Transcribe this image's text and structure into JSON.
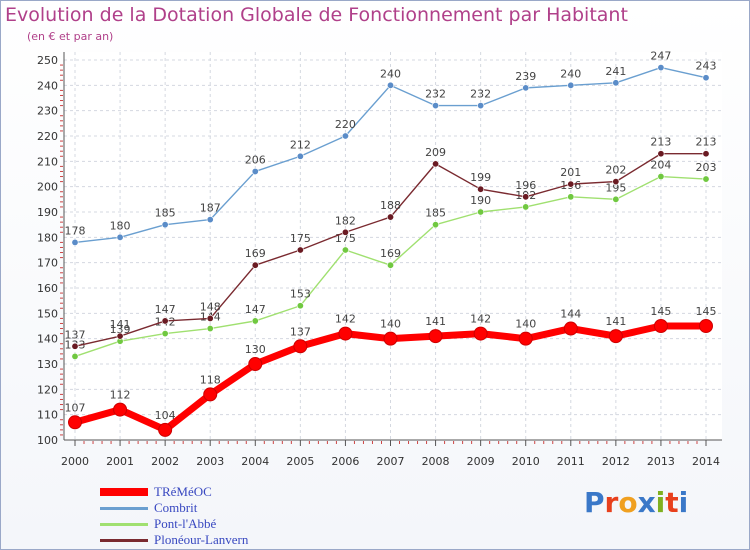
{
  "title": "Evolution de la Dotation Globale de Fonctionnement par Habitant",
  "subtitle": "(en € et par an)",
  "logo": {
    "text": "Proxiti",
    "colors": [
      "#3a78c8",
      "#e8401c",
      "#f0a020",
      "#3a78c8",
      "#80b020",
      "#e8401c",
      "#3a78c8"
    ]
  },
  "chart_data": {
    "type": "line",
    "x": [
      "2000",
      "2001",
      "2002",
      "2003",
      "2004",
      "2005",
      "2006",
      "2007",
      "2008",
      "2009",
      "2010",
      "2011",
      "2012",
      "2013",
      "2014"
    ],
    "y_ticks": [
      "100",
      "110",
      "120",
      "130",
      "140",
      "150",
      "160",
      "170",
      "180",
      "190",
      "200",
      "210",
      "220",
      "230",
      "240",
      "250"
    ],
    "ylim": [
      100,
      250
    ],
    "grid": true,
    "legend_position": "bottom-left",
    "series": [
      {
        "name": "TRéMéOC",
        "color": "#ff0000",
        "emphasis": true,
        "values": [
          107,
          112,
          104,
          118,
          130,
          137,
          142,
          140,
          141,
          142,
          140,
          144,
          141,
          145,
          145
        ],
        "labels": [
          "107",
          "112",
          "104",
          "118",
          "130",
          "137",
          "142",
          "140",
          "141",
          "142",
          "140",
          "144",
          "141",
          "145",
          "145"
        ]
      },
      {
        "name": "Combrit",
        "color": "#6a9fd0",
        "marker": "#5a8cc8",
        "values": [
          178,
          180,
          185,
          187,
          206,
          212,
          220,
          240,
          232,
          232,
          239,
          240,
          241,
          247,
          243
        ],
        "labels": [
          "178",
          "180",
          "185",
          "187",
          "206",
          "212",
          "220",
          "240",
          "232",
          "232",
          "239",
          "240",
          "241",
          "247",
          "243"
        ]
      },
      {
        "name": "Pont-l'Abbé",
        "color": "#a0e070",
        "marker": "#70c840",
        "values": [
          133,
          139,
          142,
          144,
          147,
          153,
          175,
          169,
          185,
          190,
          192,
          196,
          195,
          204,
          203
        ],
        "labels": [
          "133",
          "139",
          "142",
          "144",
          "147",
          "153",
          "175",
          "169",
          "185",
          "190",
          "192",
          "196",
          "195",
          "204",
          "203"
        ]
      },
      {
        "name": "Plonéour-Lanvern",
        "color": "#7a2a30",
        "marker": "#6a1a22",
        "values": [
          137,
          141,
          147,
          148,
          169,
          175,
          182,
          188,
          209,
          199,
          196,
          201,
          202,
          213,
          213
        ],
        "labels": [
          "137",
          "141",
          "147",
          "148",
          "169",
          "175",
          "182",
          "188",
          "209",
          "199",
          "196",
          "201",
          "202",
          "213",
          "213"
        ]
      }
    ]
  }
}
